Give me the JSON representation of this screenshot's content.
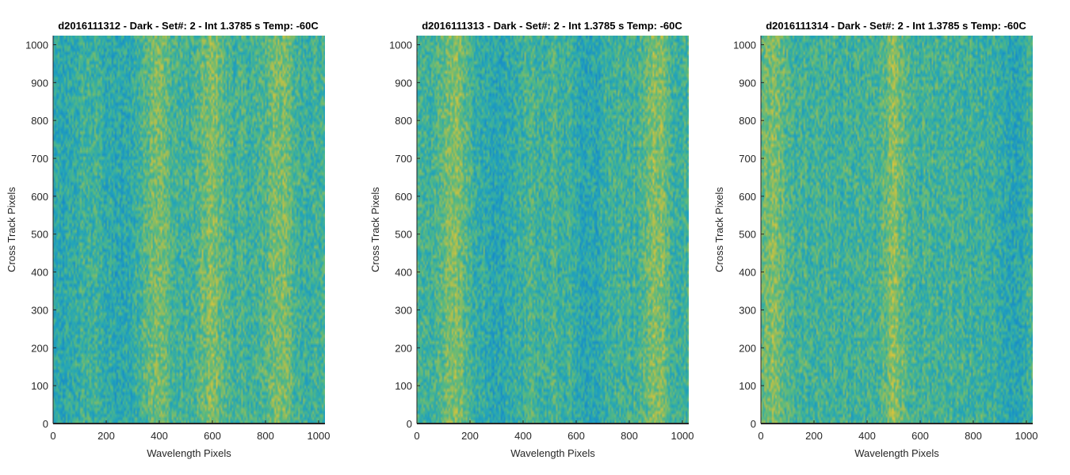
{
  "chart_data": [
    {
      "type": "heatmap",
      "title": "d2016111312 - Dark - Set#: 2 - Int 1.3785 s Temp: -60C",
      "xlabel": "Wavelength Pixels",
      "ylabel": "Cross Track Pixels",
      "xlim": [
        0,
        1024
      ],
      "ylim": [
        0,
        1024
      ],
      "xticks": [
        0,
        200,
        400,
        600,
        800,
        1000
      ],
      "yticks": [
        0,
        100,
        200,
        300,
        400,
        500,
        600,
        700,
        800,
        900,
        1000
      ],
      "colormap": "parula",
      "description_values": {
        "bright_columns": [
          390,
          600,
          850
        ],
        "dark_columns": [
          30,
          250
        ]
      }
    },
    {
      "type": "heatmap",
      "title": "d2016111313 - Dark - Set#: 2 - Int 1.3785 s Temp: -60C",
      "xlabel": "Wavelength Pixels",
      "ylabel": "Cross Track Pixels",
      "xlim": [
        0,
        1024
      ],
      "ylim": [
        0,
        1024
      ],
      "xticks": [
        0,
        200,
        400,
        600,
        800,
        1000
      ],
      "yticks": [
        0,
        100,
        200,
        300,
        400,
        500,
        600,
        700,
        800,
        900,
        1000
      ],
      "colormap": "parula",
      "description_values": {
        "bright_columns": [
          140,
          900
        ],
        "dark_columns": [
          300,
          650
        ]
      }
    },
    {
      "type": "heatmap",
      "title": "d2016111314 - Dark - Set#: 2 - Int 1.3785 s Temp: -60C",
      "xlabel": "Wavelength Pixels",
      "ylabel": "Cross Track Pixels",
      "xlim": [
        0,
        1024
      ],
      "ylim": [
        0,
        1024
      ],
      "xticks": [
        0,
        200,
        400,
        600,
        800,
        1000
      ],
      "yticks": [
        0,
        100,
        200,
        300,
        400,
        500,
        600,
        700,
        800,
        900,
        1000
      ],
      "colormap": "parula",
      "description_values": {
        "bright_columns": [
          40,
          500
        ],
        "dark_columns": [
          950
        ]
      }
    }
  ]
}
